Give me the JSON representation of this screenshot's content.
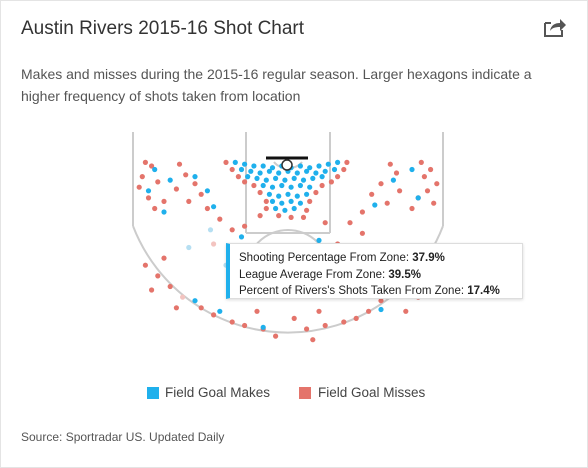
{
  "header": {
    "title": "Austin Rivers 2015-16 Shot Chart",
    "subtitle": "Makes and misses during the 2015-16 regular season. Larger hexagons indicate a higher frequency of shots taken from location"
  },
  "icons": {
    "share": "share-arrow-icon"
  },
  "tooltip": {
    "line1_label": "Shooting Percentage From Zone: ",
    "line1_value": "37.9%",
    "line2_label": "League Average From Zone: ",
    "line2_value": "39.5%",
    "line3_label": "Percent of Rivers's Shots Taken From Zone: ",
    "line3_value": "17.4%"
  },
  "legend": {
    "makes_label": "Field Goal Makes",
    "misses_label": "Field Goal Misses"
  },
  "footer": {
    "source": "Source: Sportradar US. Updated Daily"
  },
  "colors": {
    "make": "#1fb0ec",
    "miss": "#e4746b",
    "make_faded": "#b6dff2",
    "miss_faded": "#f3c4c0",
    "court_lines": "#cccccc"
  },
  "chart_data": {
    "type": "scatter",
    "title": "Austin Rivers 2015-16 Shot Chart",
    "series": [
      {
        "name": "Field Goal Makes",
        "points": [
          [
            -17,
            2
          ],
          [
            -14,
            3
          ],
          [
            -11,
            4
          ],
          [
            -8,
            4
          ],
          [
            -5,
            5
          ],
          [
            -2,
            4
          ],
          [
            1,
            5
          ],
          [
            4,
            4
          ],
          [
            7,
            5
          ],
          [
            10,
            4
          ],
          [
            13,
            3
          ],
          [
            16,
            2
          ],
          [
            -15,
            6
          ],
          [
            -12,
            7
          ],
          [
            -9,
            8
          ],
          [
            -6,
            7
          ],
          [
            -3,
            8
          ],
          [
            0,
            7
          ],
          [
            3,
            8
          ],
          [
            6,
            7
          ],
          [
            9,
            8
          ],
          [
            12,
            7
          ],
          [
            15,
            6
          ],
          [
            -10,
            11
          ],
          [
            -7,
            12
          ],
          [
            -4,
            11
          ],
          [
            -1,
            12
          ],
          [
            2,
            11
          ],
          [
            5,
            12
          ],
          [
            8,
            11
          ],
          [
            -13,
            10
          ],
          [
            11,
            10
          ],
          [
            -8,
            15
          ],
          [
            -5,
            16
          ],
          [
            -2,
            15
          ],
          [
            1,
            16
          ],
          [
            4,
            15
          ],
          [
            7,
            16
          ],
          [
            -6,
            20
          ],
          [
            -3,
            21
          ],
          [
            0,
            20
          ],
          [
            3,
            21
          ],
          [
            6,
            20
          ],
          [
            -5,
            24
          ],
          [
            -2,
            25
          ],
          [
            1,
            24
          ],
          [
            4,
            25
          ],
          [
            -4,
            28
          ],
          [
            -1,
            29
          ],
          [
            2,
            28
          ],
          [
            -43,
            6
          ],
          [
            -45,
            18
          ],
          [
            -40,
            30
          ],
          [
            -38,
            12
          ],
          [
            -30,
            10
          ],
          [
            -26,
            18
          ],
          [
            -24,
            27
          ],
          [
            34,
            12
          ],
          [
            40,
            6
          ],
          [
            42,
            22
          ],
          [
            28,
            26
          ],
          [
            -25,
            40
          ],
          [
            -15,
            44
          ],
          [
            -32,
            50
          ],
          [
            -20,
            60
          ],
          [
            -10,
            50
          ],
          [
            -12,
            65
          ],
          [
            -8,
            70
          ],
          [
            -4,
            62
          ],
          [
            10,
            46
          ],
          [
            14,
            55
          ],
          [
            20,
            66
          ],
          [
            28,
            70
          ],
          [
            36,
            60
          ],
          [
            -30,
            80
          ],
          [
            -22,
            86
          ],
          [
            -8,
            95
          ],
          [
            30,
            85
          ]
        ]
      },
      {
        "name": "Field Goal Misses",
        "points": [
          [
            -20,
            2
          ],
          [
            19,
            2
          ],
          [
            -18,
            6
          ],
          [
            18,
            6
          ],
          [
            -16,
            10
          ],
          [
            16,
            10
          ],
          [
            -14,
            13
          ],
          [
            14,
            13
          ],
          [
            -11,
            15
          ],
          [
            11,
            15
          ],
          [
            -9,
            19
          ],
          [
            9,
            19
          ],
          [
            -7,
            24
          ],
          [
            7,
            24
          ],
          [
            -7,
            28
          ],
          [
            6,
            29
          ],
          [
            -3,
            32
          ],
          [
            1,
            33
          ],
          [
            5,
            33
          ],
          [
            -9,
            32
          ],
          [
            -46,
            2
          ],
          [
            -44,
            4
          ],
          [
            -47,
            10
          ],
          [
            -42,
            13
          ],
          [
            -48,
            16
          ],
          [
            -45,
            22
          ],
          [
            -40,
            24
          ],
          [
            -43,
            28
          ],
          [
            43,
            2
          ],
          [
            46,
            6
          ],
          [
            44,
            10
          ],
          [
            48,
            14
          ],
          [
            45,
            18
          ],
          [
            42,
            22
          ],
          [
            47,
            25
          ],
          [
            40,
            28
          ],
          [
            -35,
            3
          ],
          [
            -33,
            9
          ],
          [
            -30,
            14
          ],
          [
            -36,
            17
          ],
          [
            -28,
            20
          ],
          [
            -32,
            24
          ],
          [
            -26,
            28
          ],
          [
            33,
            3
          ],
          [
            35,
            8
          ],
          [
            30,
            14
          ],
          [
            36,
            18
          ],
          [
            27,
            20
          ],
          [
            32,
            25
          ],
          [
            24,
            30
          ],
          [
            -22,
            34
          ],
          [
            -18,
            40
          ],
          [
            -24,
            48
          ],
          [
            -14,
            38
          ],
          [
            20,
            36
          ],
          [
            24,
            42
          ],
          [
            16,
            48
          ],
          [
            12,
            36
          ],
          [
            -40,
            56
          ],
          [
            -42,
            66
          ],
          [
            -38,
            72
          ],
          [
            -34,
            78
          ],
          [
            -28,
            84
          ],
          [
            -24,
            88
          ],
          [
            -18,
            92
          ],
          [
            -14,
            94
          ],
          [
            -8,
            96
          ],
          [
            40,
            58
          ],
          [
            38,
            66
          ],
          [
            36,
            72
          ],
          [
            34,
            76
          ],
          [
            30,
            80
          ],
          [
            26,
            86
          ],
          [
            22,
            90
          ],
          [
            18,
            92
          ],
          [
            12,
            94
          ],
          [
            6,
            96
          ],
          [
            -46,
            60
          ],
          [
            -44,
            74
          ],
          [
            -36,
            84
          ],
          [
            44,
            64
          ],
          [
            42,
            78
          ],
          [
            38,
            86
          ],
          [
            -10,
            86
          ],
          [
            2,
            90
          ],
          [
            10,
            86
          ],
          [
            -4,
            100
          ],
          [
            8,
            102
          ]
        ]
      }
    ],
    "xlim": [
      -50,
      50
    ],
    "ylim": [
      -5,
      105
    ],
    "legend": "bottom-center",
    "grid": false
  }
}
